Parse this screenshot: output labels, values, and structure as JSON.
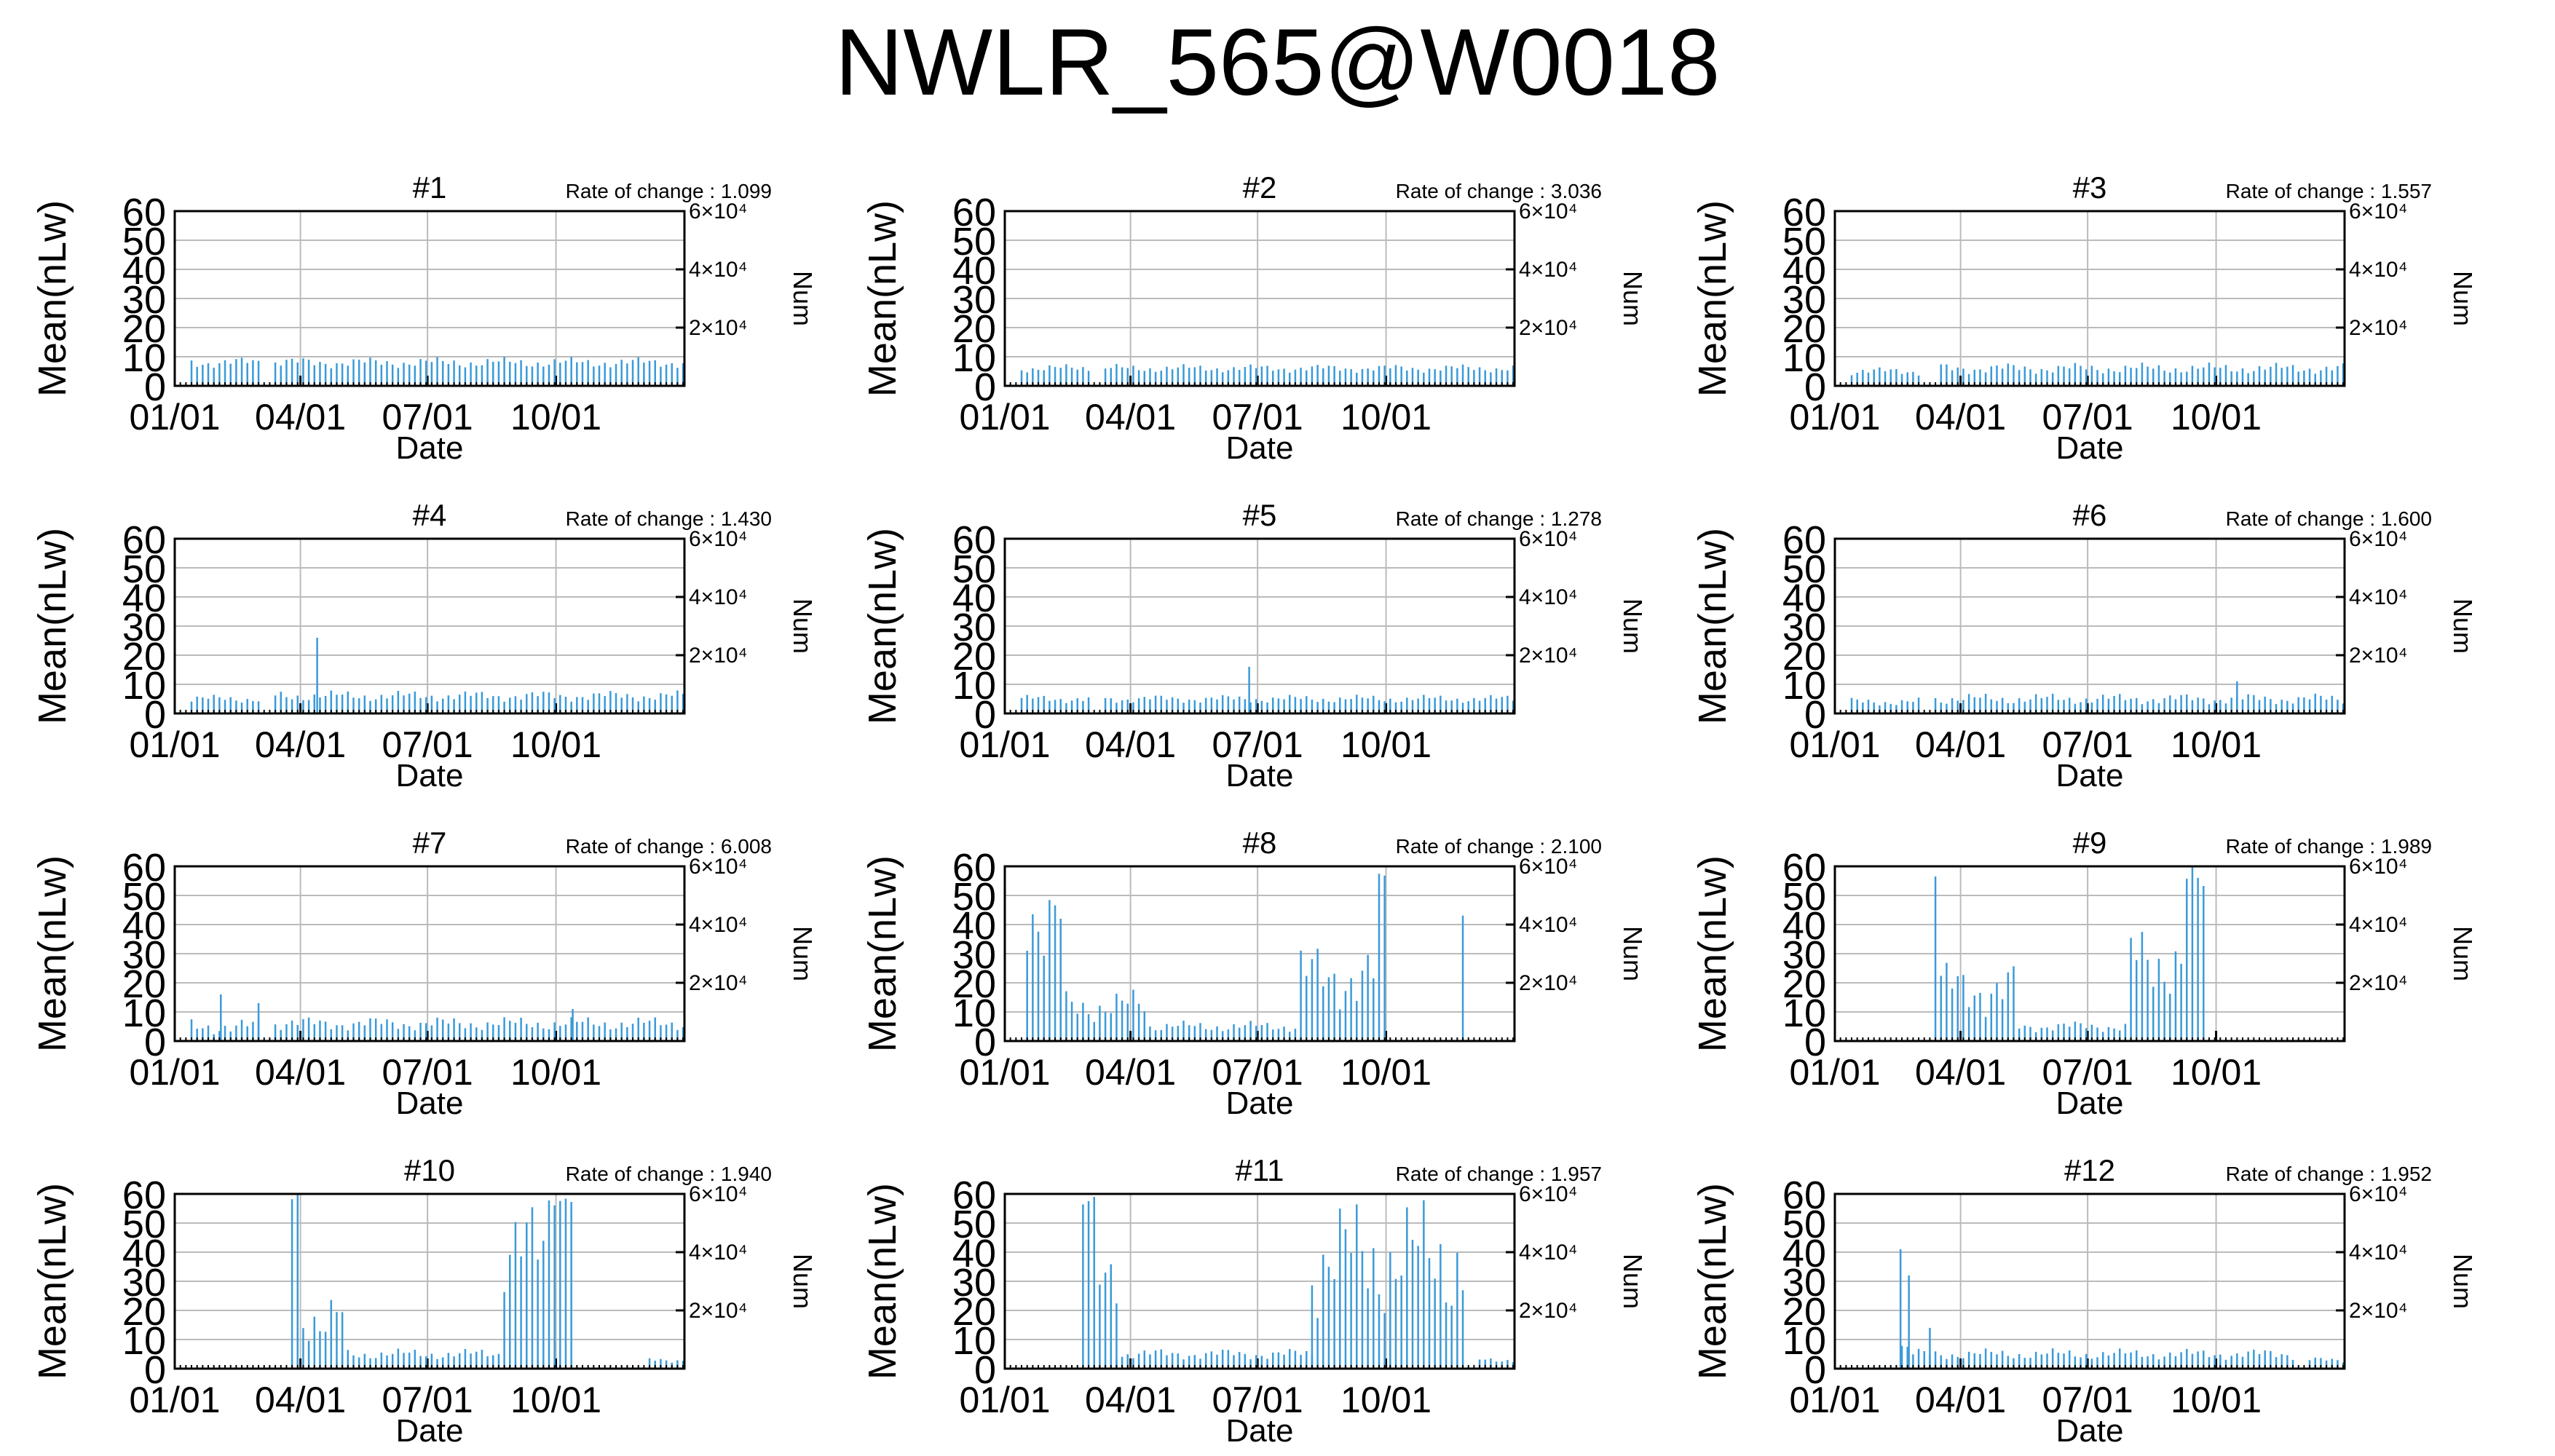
{
  "title": "NWLR_565@W0018",
  "axes": {
    "y_label": "Mean(nLw)",
    "y2_label": "Num",
    "x_label": "Date",
    "y_ticks": [
      "0",
      "10",
      "20",
      "30",
      "40",
      "50",
      "60"
    ],
    "y2_ticks": [
      "2×10⁴",
      "4×10⁴",
      "6×10⁴"
    ],
    "x_ticks": [
      "01/01",
      "04/01",
      "07/01",
      "10/01"
    ],
    "rate_prefix": "Rate of change : "
  },
  "colors": {
    "series": "#3a9ad9",
    "grid": "#bbbbbb",
    "axis": "#000000"
  },
  "chart_data": [
    {
      "type": "bar",
      "title": "#1",
      "rate": "1.099",
      "ylim": [
        0,
        60
      ],
      "y2lim": [
        0,
        60000
      ],
      "segments": [
        {
          "start": 10,
          "end": 60,
          "base": 8,
          "var": 2
        },
        {
          "start": 70,
          "end": 365,
          "base": 8,
          "var": 2
        }
      ],
      "spikes": []
    },
    {
      "type": "bar",
      "title": "#2",
      "rate": "3.036",
      "ylim": [
        0,
        60
      ],
      "y2lim": [
        0,
        60000
      ],
      "segments": [
        {
          "start": 10,
          "end": 60,
          "base": 6,
          "var": 1.5
        },
        {
          "start": 70,
          "end": 365,
          "base": 6,
          "var": 1.5
        }
      ],
      "spikes": []
    },
    {
      "type": "bar",
      "title": "#3",
      "rate": "1.557",
      "ylim": [
        0,
        60
      ],
      "y2lim": [
        0,
        60000
      ],
      "segments": [
        {
          "start": 10,
          "end": 60,
          "base": 5,
          "var": 1.5
        },
        {
          "start": 75,
          "end": 365,
          "base": 6,
          "var": 2
        }
      ],
      "spikes": []
    },
    {
      "type": "bar",
      "title": "#4",
      "rate": "1.430",
      "ylim": [
        0,
        60
      ],
      "y2lim": [
        0,
        60000
      ],
      "segments": [
        {
          "start": 10,
          "end": 60,
          "base": 5,
          "var": 1.5
        },
        {
          "start": 70,
          "end": 365,
          "base": 6,
          "var": 2
        }
      ],
      "spikes": [
        {
          "day": 102,
          "value": 26
        }
      ]
    },
    {
      "type": "bar",
      "title": "#5",
      "rate": "1.278",
      "ylim": [
        0,
        60
      ],
      "y2lim": [
        0,
        60000
      ],
      "segments": [
        {
          "start": 10,
          "end": 60,
          "base": 5,
          "var": 1.5
        },
        {
          "start": 70,
          "end": 365,
          "base": 5,
          "var": 1.5
        }
      ],
      "spikes": [
        {
          "day": 175,
          "value": 16
        }
      ]
    },
    {
      "type": "bar",
      "title": "#6",
      "rate": "1.600",
      "ylim": [
        0,
        60
      ],
      "y2lim": [
        0,
        60000
      ],
      "segments": [
        {
          "start": 10,
          "end": 60,
          "base": 4,
          "var": 1.5
        },
        {
          "start": 70,
          "end": 365,
          "base": 5,
          "var": 2
        }
      ],
      "spikes": [
        {
          "day": 288,
          "value": 11
        }
      ]
    },
    {
      "type": "bar",
      "title": "#7",
      "rate": "6.008",
      "ylim": [
        0,
        60
      ],
      "y2lim": [
        0,
        60000
      ],
      "segments": [
        {
          "start": 10,
          "end": 60,
          "base": 5,
          "var": 3
        },
        {
          "start": 70,
          "end": 365,
          "base": 6,
          "var": 2.5
        }
      ],
      "spikes": [
        {
          "day": 33,
          "value": 16
        },
        {
          "day": 60,
          "value": 13
        },
        {
          "day": 285,
          "value": 11
        }
      ]
    },
    {
      "type": "bar",
      "title": "#8",
      "rate": "2.100",
      "ylim": [
        0,
        60
      ],
      "y2lim": [
        0,
        60000
      ],
      "segments": [
        {
          "start": 15,
          "end": 40,
          "base": 45,
          "var": 18
        },
        {
          "start": 40,
          "end": 100,
          "base": 12,
          "var": 6
        },
        {
          "start": 100,
          "end": 210,
          "base": 5,
          "var": 2
        },
        {
          "start": 210,
          "end": 265,
          "base": 22,
          "var": 12
        },
        {
          "start": 265,
          "end": 275,
          "base": 55,
          "var": 6
        },
        {
          "start": 325,
          "end": 330,
          "base": 45,
          "var": 15
        }
      ],
      "spikes": []
    },
    {
      "type": "bar",
      "title": "#9",
      "rate": "1.989",
      "ylim": [
        0,
        60
      ],
      "y2lim": [
        0,
        60000
      ],
      "segments": [
        {
          "start": 70,
          "end": 75,
          "base": 58,
          "var": 2
        },
        {
          "start": 75,
          "end": 130,
          "base": 18,
          "var": 10
        },
        {
          "start": 130,
          "end": 210,
          "base": 5,
          "var": 2
        },
        {
          "start": 210,
          "end": 250,
          "base": 28,
          "var": 14
        },
        {
          "start": 250,
          "end": 265,
          "base": 55,
          "var": 6
        }
      ],
      "spikes": []
    },
    {
      "type": "bar",
      "title": "#10",
      "rate": "1.940",
      "ylim": [
        0,
        60
      ],
      "y2lim": [
        0,
        60000
      ],
      "segments": [
        {
          "start": 82,
          "end": 88,
          "base": 58,
          "var": 2
        },
        {
          "start": 88,
          "end": 120,
          "base": 18,
          "var": 10
        },
        {
          "start": 120,
          "end": 235,
          "base": 5,
          "var": 2
        },
        {
          "start": 235,
          "end": 265,
          "base": 40,
          "var": 18
        },
        {
          "start": 265,
          "end": 285,
          "base": 58,
          "var": 2
        },
        {
          "start": 340,
          "end": 365,
          "base": 3,
          "var": 1
        }
      ],
      "spikes": []
    },
    {
      "type": "bar",
      "title": "#11",
      "rate": "1.957",
      "ylim": [
        0,
        60
      ],
      "y2lim": [
        0,
        60000
      ],
      "segments": [
        {
          "start": 55,
          "end": 65,
          "base": 58,
          "var": 2
        },
        {
          "start": 65,
          "end": 80,
          "base": 28,
          "var": 12
        },
        {
          "start": 80,
          "end": 220,
          "base": 5,
          "var": 2
        },
        {
          "start": 220,
          "end": 330,
          "base": 38,
          "var": 22
        },
        {
          "start": 340,
          "end": 365,
          "base": 3,
          "var": 1
        }
      ],
      "spikes": []
    },
    {
      "type": "bar",
      "title": "#12",
      "rate": "1.952",
      "ylim": [
        0,
        60
      ],
      "y2lim": [
        0,
        60000
      ],
      "segments": [
        {
          "start": 45,
          "end": 55,
          "base": 8,
          "var": 3
        },
        {
          "start": 55,
          "end": 330,
          "base": 5,
          "var": 2
        },
        {
          "start": 340,
          "end": 365,
          "base": 3,
          "var": 1
        }
      ],
      "spikes": [
        {
          "day": 47,
          "value": 41
        },
        {
          "day": 53,
          "value": 32
        },
        {
          "day": 68,
          "value": 14
        }
      ]
    }
  ]
}
